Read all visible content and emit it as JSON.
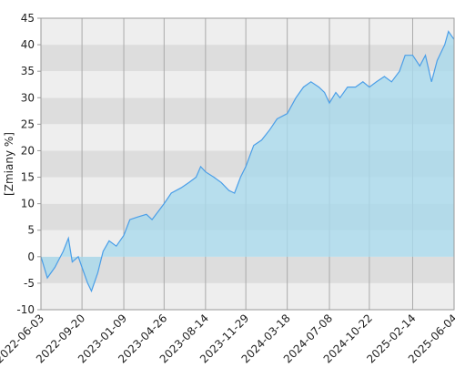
{
  "chart_data": {
    "type": "area",
    "y_label": "[Zmiany %]",
    "x": [
      "2022-06-03",
      "2022-06-20",
      "2022-07-10",
      "2022-08-01",
      "2022-08-15",
      "2022-08-25",
      "2022-09-10",
      "2022-09-20",
      "2022-10-05",
      "2022-10-15",
      "2022-11-01",
      "2022-11-15",
      "2022-12-01",
      "2022-12-20",
      "2023-01-09",
      "2023-01-25",
      "2023-02-15",
      "2023-03-10",
      "2023-03-25",
      "2023-04-26",
      "2023-05-15",
      "2023-06-10",
      "2023-07-01",
      "2023-07-20",
      "2023-08-01",
      "2023-08-14",
      "2023-09-05",
      "2023-09-25",
      "2023-10-15",
      "2023-10-30",
      "2023-11-15",
      "2023-11-29",
      "2023-12-20",
      "2024-01-10",
      "2024-02-01",
      "2024-02-20",
      "2024-03-18",
      "2024-04-10",
      "2024-04-30",
      "2024-05-20",
      "2024-06-10",
      "2024-06-25",
      "2024-07-08",
      "2024-07-25",
      "2024-08-05",
      "2024-08-25",
      "2024-09-15",
      "2024-10-05",
      "2024-10-22",
      "2024-11-10",
      "2024-12-01",
      "2024-12-20",
      "2025-01-10",
      "2025-01-25",
      "2025-02-14",
      "2025-03-05",
      "2025-03-20",
      "2025-04-05",
      "2025-04-20",
      "2025-05-10",
      "2025-05-20",
      "2025-06-04"
    ],
    "values": [
      0,
      -4,
      -2,
      1,
      3.5,
      -1,
      0,
      -2,
      -5,
      -6.5,
      -3,
      1,
      3,
      2,
      4,
      7,
      7.5,
      8,
      7,
      10,
      12,
      13,
      14,
      15,
      17,
      16,
      15,
      14,
      12.5,
      12,
      15,
      17,
      21,
      22,
      24,
      26,
      27,
      30,
      32,
      33,
      32,
      31,
      29,
      31,
      30,
      32,
      32,
      33,
      32,
      33,
      34,
      33,
      35,
      38,
      38,
      36,
      38,
      33,
      37,
      40,
      42.5,
      41
    ],
    "color": "#4a9ee8",
    "fill_color": "#a9d9ec",
    "xlim": [
      "2022-06-03",
      "2025-06-04"
    ],
    "xticks": [
      "2022-06-03",
      "2022-09-20",
      "2023-01-09",
      "2023-04-26",
      "2023-08-14",
      "2023-11-29",
      "2024-03-18",
      "2024-07-08",
      "2024-10-22",
      "2025-02-14",
      "2025-06-04"
    ],
    "ylim": [
      -10,
      45
    ],
    "yticks": [
      -10,
      -5,
      0,
      5,
      10,
      15,
      20,
      25,
      30,
      35,
      40,
      45
    ],
    "band_colors": [
      "#eeeeee",
      "#dddddd"
    ],
    "grid": true
  }
}
